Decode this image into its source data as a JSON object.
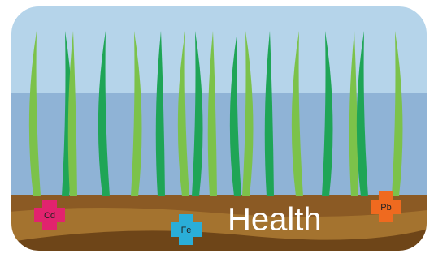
{
  "markers": [
    {
      "label": "Cd"
    },
    {
      "label": "Fe"
    },
    {
      "label": "Pb"
    }
  ],
  "caption": "Health"
}
